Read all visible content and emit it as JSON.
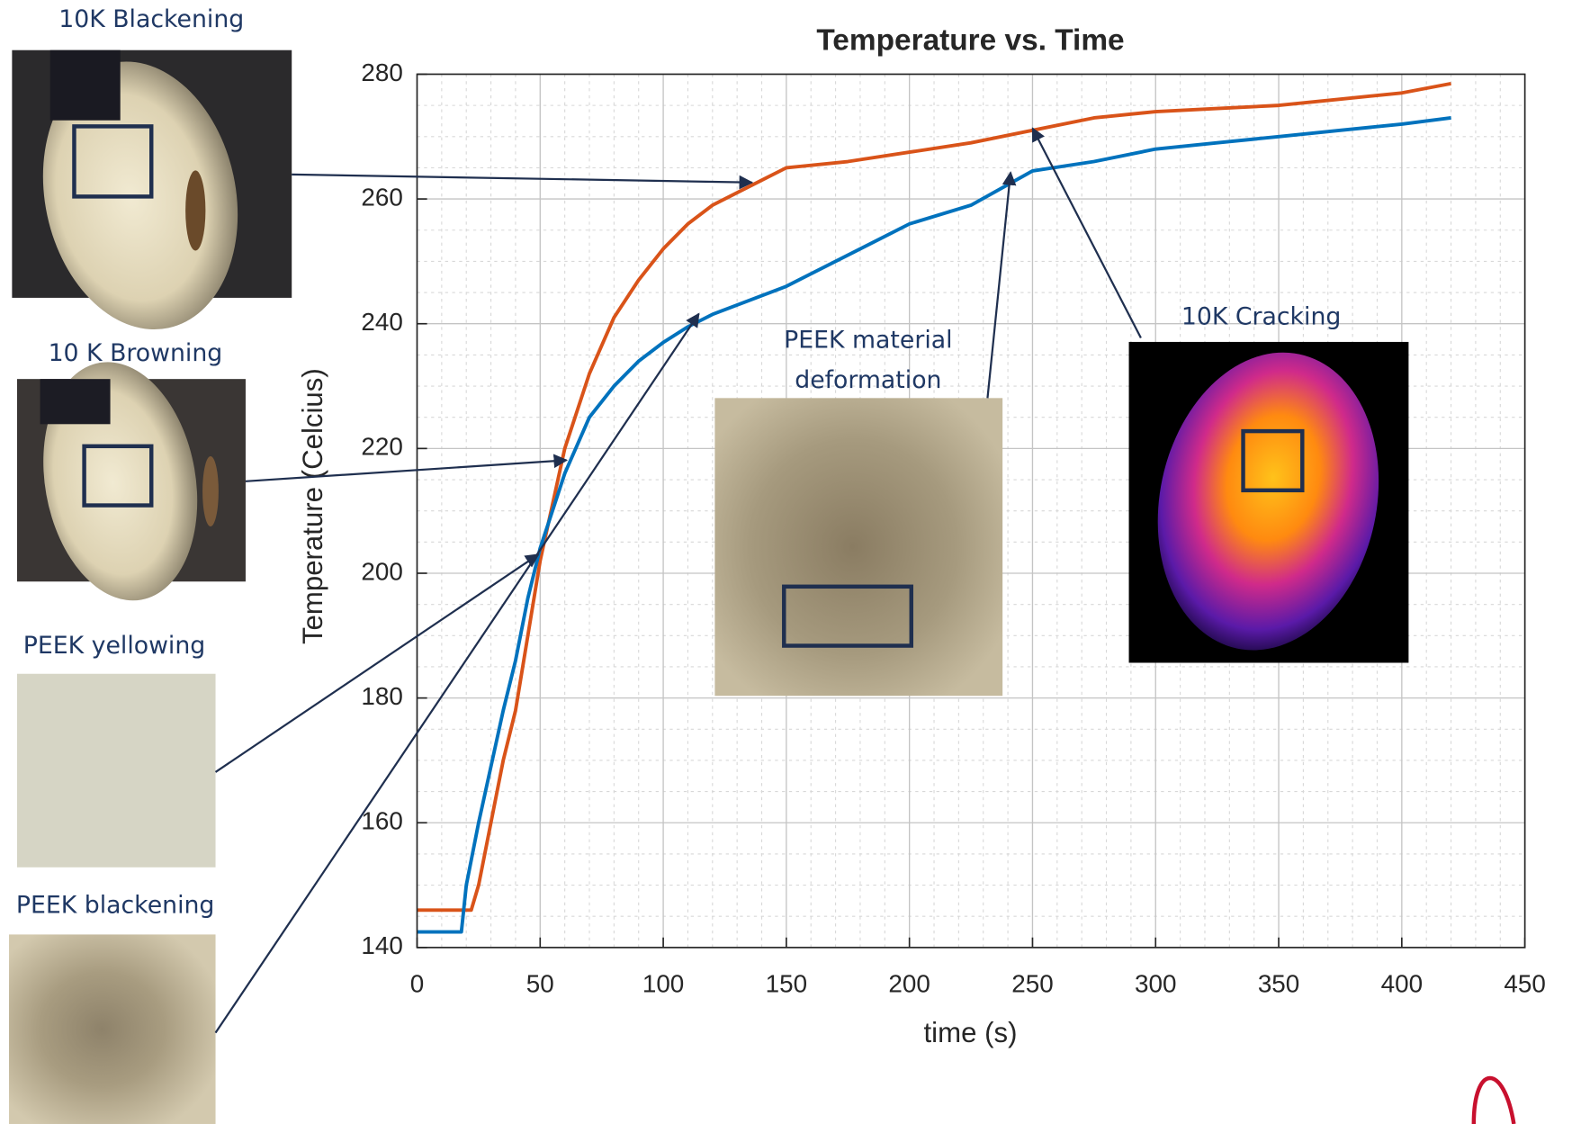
{
  "chart_data": {
    "type": "line",
    "title": "Temperature vs. Time",
    "x_label": "time (s)",
    "y_label": "Temperature (Celcius)",
    "x": [
      0,
      18,
      20,
      22,
      25,
      30,
      35,
      40,
      45,
      50,
      55,
      60,
      70,
      80,
      90,
      100,
      110,
      120,
      130,
      140,
      150,
      175,
      200,
      225,
      250,
      275,
      300,
      325,
      350,
      375,
      400,
      420
    ],
    "series": [
      {
        "color": "#d95319",
        "values": [
          146,
          146,
          146,
          146,
          150,
          160,
          170,
          178,
          190,
          202,
          211,
          220,
          232,
          241,
          247,
          252,
          256,
          259,
          261,
          263,
          265,
          266,
          267.5,
          269,
          271,
          273,
          274,
          274.5,
          275,
          276,
          277,
          278.5
        ]
      },
      {
        "color": "#0072bd",
        "values": [
          142.5,
          142.5,
          150,
          154,
          160,
          169,
          178,
          186,
          196,
          204,
          210,
          216,
          225,
          230,
          234,
          237,
          239.5,
          241.5,
          243,
          244.5,
          246,
          251,
          256,
          259,
          264.5,
          266,
          268,
          269,
          270,
          271,
          272,
          273
        ]
      }
    ],
    "xlim": [
      0,
      450
    ],
    "xticks": [
      0,
      50,
      100,
      150,
      200,
      250,
      300,
      350,
      400,
      450
    ],
    "ylim": [
      140,
      280
    ],
    "yticks": [
      140,
      160,
      180,
      200,
      220,
      240,
      260,
      280
    ],
    "grid": true,
    "minor_grid": true,
    "annotations": [
      [
        "10K Blackening"
      ],
      [
        "10 K Browning"
      ],
      [
        "PEEK yellowing"
      ],
      [
        "PEEK blackening"
      ],
      [
        "PEEK material",
        "deformation"
      ],
      [
        "10K Cracking"
      ]
    ]
  }
}
